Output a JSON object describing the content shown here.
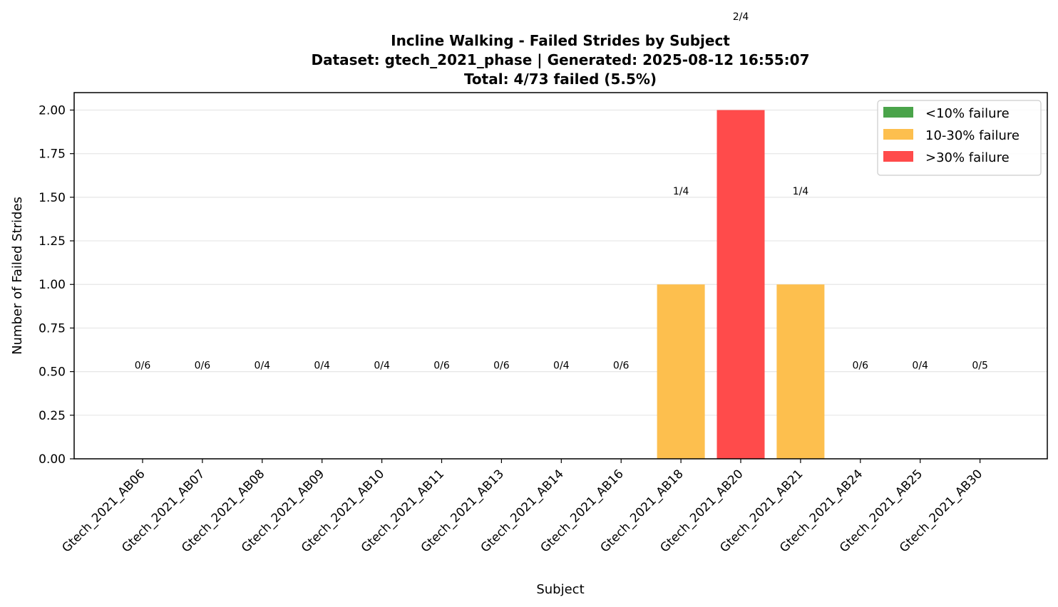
{
  "chart_data": {
    "type": "bar",
    "title_lines": [
      "Incline Walking - Failed Strides by Subject",
      "Dataset: gtech_2021_phase | Generated: 2025-08-12 16:55:07",
      "Total: 4/73 failed (5.5%)"
    ],
    "xlabel": "Subject",
    "ylabel": "Number of Failed Strides",
    "ylim": [
      0,
      2.1
    ],
    "yticks": [
      "0.00",
      "0.25",
      "0.50",
      "0.75",
      "1.00",
      "1.25",
      "1.50",
      "1.75",
      "2.00"
    ],
    "grid": "y",
    "legend_position": "top-right",
    "categories": [
      "Gtech_2021_AB06",
      "Gtech_2021_AB07",
      "Gtech_2021_AB08",
      "Gtech_2021_AB09",
      "Gtech_2021_AB10",
      "Gtech_2021_AB11",
      "Gtech_2021_AB13",
      "Gtech_2021_AB14",
      "Gtech_2021_AB16",
      "Gtech_2021_AB18",
      "Gtech_2021_AB20",
      "Gtech_2021_AB21",
      "Gtech_2021_AB24",
      "Gtech_2021_AB25",
      "Gtech_2021_AB30"
    ],
    "values": [
      0,
      0,
      0,
      0,
      0,
      0,
      0,
      0,
      0,
      1,
      2,
      1,
      0,
      0,
      0
    ],
    "totals": [
      6,
      6,
      4,
      4,
      4,
      6,
      6,
      4,
      6,
      4,
      4,
      4,
      6,
      4,
      5
    ],
    "bar_labels": [
      "0/6",
      "0/6",
      "0/4",
      "0/4",
      "0/4",
      "0/6",
      "0/6",
      "0/4",
      "0/6",
      "1/4",
      "2/4",
      "1/4",
      "0/6",
      "0/4",
      "0/5"
    ],
    "bar_categories": [
      "low",
      "low",
      "low",
      "low",
      "low",
      "low",
      "low",
      "low",
      "low",
      "mid",
      "high",
      "mid",
      "low",
      "low",
      "low"
    ],
    "legend": [
      {
        "key": "low",
        "label": "<10% failure",
        "color": "#4aa44a"
      },
      {
        "key": "mid",
        "label": "10-30% failure",
        "color": "#fdbf4e"
      },
      {
        "key": "high",
        "label": ">30% failure",
        "color": "#ff4b4b"
      }
    ]
  }
}
